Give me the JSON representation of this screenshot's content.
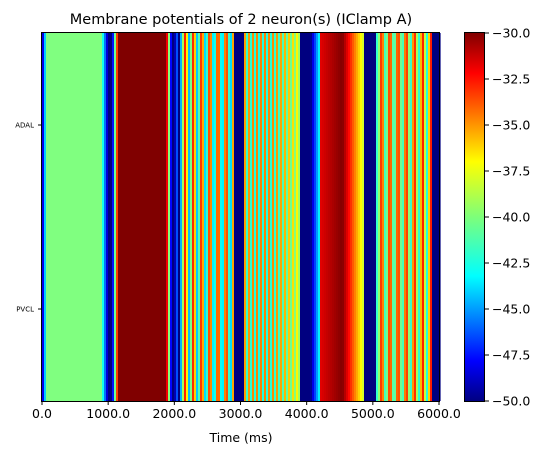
{
  "chart_data": {
    "type": "heatmap",
    "title": "Membrane potentials of 2 neuron(s) (IClamp A)",
    "xlabel": "Time (ms)",
    "ylabel": "",
    "xlim": [
      0,
      6000
    ],
    "x_ticks": [
      0,
      1000,
      2000,
      3000,
      4000,
      5000,
      6000
    ],
    "x_tick_labels": [
      "0.0",
      "1000.0",
      "2000.0",
      "3000.0",
      "4000.0",
      "5000.0",
      "6000.0"
    ],
    "rows": [
      "ADAL",
      "PVCL"
    ],
    "colormap": "jet",
    "colorbar": {
      "min": -50.0,
      "max": -30.0,
      "ticks": [
        -30.0,
        -32.5,
        -35.0,
        -37.5,
        -40.0,
        -42.5,
        -45.0,
        -47.5,
        -50.0
      ],
      "tick_labels": [
        "−30.0",
        "−32.5",
        "−35.0",
        "−37.5",
        "−40.0",
        "−42.5",
        "−45.0",
        "−47.5",
        "−50.0"
      ]
    },
    "segments": [
      {
        "t_start": 0,
        "t_end": 70,
        "mode": "rise",
        "from": -50,
        "to": -40
      },
      {
        "t_start": 70,
        "t_end": 900,
        "mode": "constant",
        "value": -40
      },
      {
        "t_start": 900,
        "t_end": 1000,
        "mode": "fall",
        "from": -40,
        "to": -50
      },
      {
        "t_start": 1000,
        "t_end": 1060,
        "mode": "constant",
        "value": -50
      },
      {
        "t_start": 1060,
        "t_end": 1150,
        "mode": "rise",
        "from": -50,
        "to": -30
      },
      {
        "t_start": 1150,
        "t_end": 1880,
        "mode": "constant",
        "value": -30
      },
      {
        "t_start": 1880,
        "t_end": 1960,
        "mode": "fall",
        "from": -30,
        "to": -50
      },
      {
        "t_start": 1960,
        "t_end": 2000,
        "mode": "constant",
        "value": -50
      },
      {
        "t_start": 2000,
        "t_end": 2060,
        "mode": "rise",
        "from": -50,
        "to": -44
      },
      {
        "t_start": 2060,
        "t_end": 2100,
        "mode": "constant",
        "value": -50
      },
      {
        "t_start": 2100,
        "t_end": 2900,
        "mode": "oscillate",
        "period": 40,
        "low": -44,
        "high": -33
      },
      {
        "t_start": 2900,
        "t_end": 3060,
        "mode": "constant",
        "value": -50
      },
      {
        "t_start": 3060,
        "t_end": 3900,
        "mode": "oscillate",
        "period": 20,
        "low": -42,
        "high": -35
      },
      {
        "t_start": 3900,
        "t_end": 4060,
        "mode": "constant",
        "value": -50
      },
      {
        "t_start": 4060,
        "t_end": 4200,
        "mode": "rise",
        "from": -50,
        "to": -42
      },
      {
        "t_start": 4200,
        "t_end": 4880,
        "mode": "sweep",
        "from": -32,
        "mid": -30,
        "to": -39
      },
      {
        "t_start": 4880,
        "t_end": 5060,
        "mode": "constant",
        "value": -50
      },
      {
        "t_start": 5060,
        "t_end": 5900,
        "mode": "oscillate",
        "period": 40,
        "low": -42,
        "high": -33
      },
      {
        "t_start": 5900,
        "t_end": 6000,
        "mode": "constant",
        "value": -50
      }
    ]
  }
}
